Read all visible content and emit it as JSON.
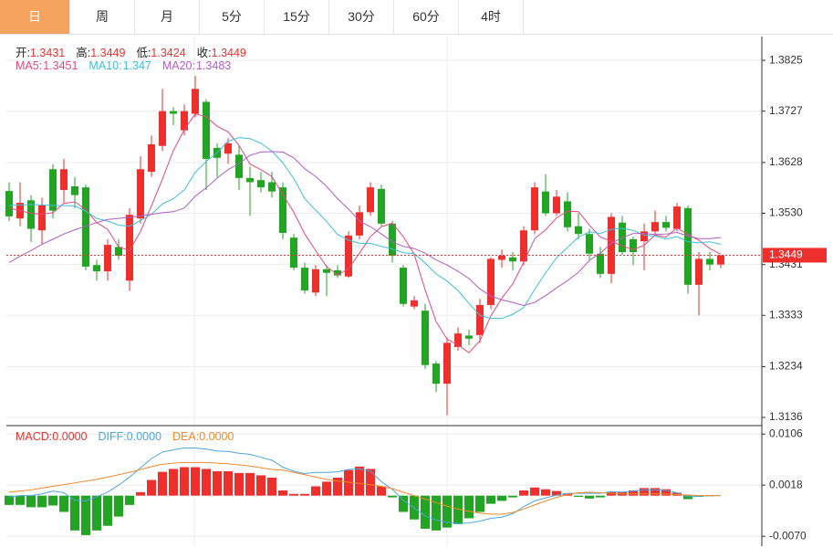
{
  "tabs": [
    "日",
    "周",
    "月",
    "5分",
    "15分",
    "30分",
    "60分",
    "4时"
  ],
  "active_tab": 0,
  "chart_data": [
    {
      "type": "candlestick",
      "up_color": "#ee2f2b",
      "down_color": "#23a524",
      "grid": true,
      "ylim": [
        1.3122,
        1.3871
      ],
      "yticks": [
        1.3136,
        1.3234,
        1.3333,
        1.3431,
        {
          "value": 1.353,
          "label": "1.3530"
        },
        1.3628,
        1.3727,
        1.3825
      ],
      "ohlc_labels": [
        "开:",
        "高:",
        "低:",
        "收:"
      ],
      "open": [
        1.3573,
        1.352,
        1.3555,
        1.3497,
        1.3615,
        1.3575,
        1.3582,
        1.358,
        1.343,
        1.3418,
        1.3465,
        1.34,
        1.352,
        1.361,
        1.366,
        1.3727,
        1.369,
        1.3722,
        1.3745,
        1.3656,
        1.3645,
        1.3643,
        1.3598,
        1.3594,
        1.359,
        1.358,
        1.3483,
        1.3425,
        1.3377,
        1.3422,
        1.342,
        1.3408,
        1.3487,
        1.3532,
        1.3577,
        1.351,
        1.3425,
        1.335,
        1.3342,
        1.324,
        1.3201,
        1.3272,
        1.3294,
        1.3295,
        1.3353,
        1.344,
        1.3445,
        1.3437,
        1.3497,
        1.3572,
        1.353,
        1.3553,
        1.3505,
        1.349,
        1.3452,
        1.3413,
        1.3512,
        1.348,
        1.3476,
        1.3495,
        1.3513,
        1.35,
        1.354,
        1.3392,
        1.3442,
        1.3431
      ],
      "high": [
        1.359,
        1.359,
        1.3565,
        1.356,
        1.3625,
        1.3635,
        1.36,
        1.3585,
        1.344,
        1.348,
        1.348,
        1.354,
        1.364,
        1.368,
        1.377,
        1.3735,
        1.374,
        1.3795,
        1.375,
        1.3665,
        1.3675,
        1.366,
        1.362,
        1.361,
        1.361,
        1.359,
        1.349,
        1.3435,
        1.343,
        1.343,
        1.343,
        1.3495,
        1.3545,
        1.359,
        1.3585,
        1.3515,
        1.343,
        1.337,
        1.3355,
        1.3245,
        1.329,
        1.331,
        1.3305,
        1.3365,
        1.3445,
        1.346,
        1.3455,
        1.3505,
        1.359,
        1.3605,
        1.3575,
        1.357,
        1.353,
        1.35,
        1.3465,
        1.353,
        1.3525,
        1.3485,
        1.351,
        1.3535,
        1.3525,
        1.355,
        1.3545,
        1.3455,
        1.3455,
        1.3449
      ],
      "low": [
        1.3515,
        1.3505,
        1.3475,
        1.347,
        1.352,
        1.355,
        1.354,
        1.342,
        1.34,
        1.34,
        1.344,
        1.338,
        1.351,
        1.36,
        1.365,
        1.37,
        1.368,
        1.3715,
        1.3575,
        1.36,
        1.3625,
        1.3575,
        1.3525,
        1.357,
        1.356,
        1.348,
        1.342,
        1.3375,
        1.337,
        1.337,
        1.3405,
        1.3405,
        1.348,
        1.3525,
        1.3505,
        1.3435,
        1.335,
        1.3345,
        1.323,
        1.3185,
        1.314,
        1.3265,
        1.3275,
        1.328,
        1.3345,
        1.3425,
        1.342,
        1.343,
        1.349,
        1.3525,
        1.3525,
        1.3495,
        1.348,
        1.344,
        1.3405,
        1.3395,
        1.345,
        1.343,
        1.342,
        1.349,
        1.3495,
        1.3495,
        1.3375,
        1.3333,
        1.342,
        1.3424
      ],
      "close": [
        1.3524,
        1.355,
        1.35,
        1.3545,
        1.3535,
        1.3615,
        1.3565,
        1.3427,
        1.3418,
        1.3469,
        1.3448,
        1.3527,
        1.3615,
        1.3663,
        1.3727,
        1.3722,
        1.3727,
        1.377,
        1.3635,
        1.3637,
        1.3665,
        1.3598,
        1.359,
        1.358,
        1.3572,
        1.3492,
        1.3425,
        1.3381,
        1.3422,
        1.3415,
        1.341,
        1.3487,
        1.3532,
        1.358,
        1.351,
        1.3448,
        1.3355,
        1.3362,
        1.3237,
        1.3201,
        1.328,
        1.3298,
        1.3288,
        1.3353,
        1.3442,
        1.3448,
        1.3437,
        1.3497,
        1.358,
        1.353,
        1.3562,
        1.3503,
        1.349,
        1.3452,
        1.3413,
        1.3523,
        1.3455,
        1.3455,
        1.3495,
        1.3513,
        1.3502,
        1.3543,
        1.3392,
        1.3442,
        1.3431,
        1.3449
      ],
      "series": [
        {
          "name": "MA5:",
          "color": "#e4477e",
          "values": [
            1.354,
            1.3535,
            1.353,
            1.3528,
            1.3531,
            1.3549,
            1.3552,
            1.3537,
            1.3512,
            1.3499,
            1.3465,
            1.3458,
            1.3495,
            1.3544,
            1.3596,
            1.3651,
            1.3691,
            1.3722,
            1.3716,
            1.3698,
            1.3687,
            1.3661,
            1.3625,
            1.3614,
            1.3601,
            1.3566,
            1.3532,
            1.349,
            1.3458,
            1.3427,
            1.3411,
            1.3423,
            1.3453,
            1.3485,
            1.3504,
            1.3511,
            1.3485,
            1.3451,
            1.3382,
            1.3321,
            1.3287,
            1.3276,
            1.3261,
            1.3284,
            1.3332,
            1.3366,
            1.3394,
            1.3435,
            1.3481,
            1.3498,
            1.3521,
            1.3534,
            1.3533,
            1.3507,
            1.3484,
            1.3476,
            1.3467,
            1.346,
            1.3468,
            1.3488,
            1.3484,
            1.3502,
            1.3489,
            1.3478,
            1.3462,
            1.3451
          ]
        },
        {
          "name": "MA10:",
          "color": "#3cbfd8",
          "values": [
            1.3545,
            1.3546,
            1.3547,
            1.3546,
            1.3545,
            1.3545,
            1.3544,
            1.3534,
            1.352,
            1.3515,
            1.3507,
            1.3505,
            1.3516,
            1.3528,
            1.3548,
            1.3558,
            1.3575,
            1.3609,
            1.363,
            1.3647,
            1.3669,
            1.3676,
            1.3674,
            1.3665,
            1.365,
            1.3627,
            1.3597,
            1.3558,
            1.3536,
            1.3514,
            1.3489,
            1.3478,
            1.3472,
            1.3472,
            1.3466,
            1.3461,
            1.3454,
            1.3452,
            1.3434,
            1.3413,
            1.3399,
            1.3381,
            1.3356,
            1.3333,
            1.3327,
            1.3327,
            1.3335,
            1.3348,
            1.3383,
            1.3415,
            1.3444,
            1.3464,
            1.3484,
            1.3494,
            1.3491,
            1.3499,
            1.3501,
            1.3497,
            1.3488,
            1.3486,
            1.348,
            1.3485,
            1.3475,
            1.3473,
            1.3475,
            1.347
          ]
        },
        {
          "name": "MA20:",
          "color": "#b15cc6",
          "values": [
            1.3435,
            1.3447,
            1.3458,
            1.347,
            1.348,
            1.349,
            1.3498,
            1.3505,
            1.3512,
            1.3518,
            1.352,
            1.3522,
            1.3525,
            1.3528,
            1.3531,
            1.3533,
            1.354,
            1.3563,
            1.3579,
            1.3598,
            1.3614,
            1.3626,
            1.3642,
            1.3648,
            1.3649,
            1.3648,
            1.3637,
            1.3616,
            1.3601,
            1.3582,
            1.3558,
            1.3538,
            1.3515,
            1.3504,
            1.349,
            1.3475,
            1.3466,
            1.3462,
            1.3453,
            1.344,
            1.343,
            1.3418,
            1.3404,
            1.3384,
            1.337,
            1.3363,
            1.3358,
            1.3352,
            1.3358,
            1.3371,
            1.3386,
            1.34,
            1.3416,
            1.3439,
            1.3453,
            1.3472,
            1.3483,
            1.3491,
            1.3491,
            1.3489,
            1.349,
            1.3493,
            1.3486,
            1.3481,
            1.3481,
            1.3483
          ]
        }
      ]
    },
    {
      "type": "macd",
      "grid": true,
      "ylim": [
        -0.0087,
        0.0119
      ],
      "yticks": [
        {
          "value": -0.007,
          "label": "-0.0070"
        },
        0.0018,
        0.0106
      ],
      "series": [
        {
          "name": "MACD:",
          "legend_label": "0.0000",
          "color": "#ee2f2b",
          "down_color": "#23a524",
          "values": [
            -0.0016,
            -0.0016,
            -0.002,
            -0.002,
            -0.0017,
            -0.0028,
            -0.006,
            -0.0068,
            -0.006,
            -0.0052,
            -0.0036,
            -0.0016,
            0.0006,
            0.0027,
            0.0041,
            0.0046,
            0.0049,
            0.0049,
            0.0046,
            0.0042,
            0.0042,
            0.0039,
            0.0039,
            0.0035,
            0.0031,
            0.0009,
            0.0003,
            0.0003,
            0.0016,
            0.0024,
            0.0031,
            0.0044,
            0.005,
            0.0046,
            0.0016,
            -0.0003,
            -0.0028,
            -0.0041,
            -0.0057,
            -0.006,
            -0.0055,
            -0.0049,
            -0.0039,
            -0.0028,
            -0.0014,
            -0.0009,
            -0.0003,
            0.0009,
            0.0014,
            0.0011,
            0.0008,
            0.0003,
            -0.0002,
            -0.0005,
            -0.0003,
            0.0006,
            0.0006,
            0.0009,
            0.0013,
            0.0013,
            0.0011,
            0.0005,
            -0.0006,
            -0.0002,
            -0.0001,
            0
          ]
        },
        {
          "name": "DIFF:",
          "legend_label": "0.0000",
          "color": "#4ca4e0",
          "values": [
            -0.0002,
            0,
            0,
            0.0003,
            0.0008,
            0.0005,
            -0.0008,
            -0.0009,
            -0.0002,
            0.0006,
            0.0018,
            0.0032,
            0.0048,
            0.0064,
            0.0075,
            0.0079,
            0.0082,
            0.0082,
            0.008,
            0.0077,
            0.0076,
            0.0073,
            0.0071,
            0.0066,
            0.0061,
            0.0049,
            0.0042,
            0.0038,
            0.004,
            0.004,
            0.0041,
            0.0045,
            0.0046,
            0.0042,
            0.0024,
            0.0011,
            -0.0008,
            -0.0021,
            -0.0035,
            -0.0042,
            -0.0046,
            -0.0048,
            -0.0047,
            -0.0044,
            -0.0039,
            -0.0037,
            -0.0031,
            -0.0019,
            -0.0009,
            -0.0004,
            0.0001,
            0.0004,
            0.0004,
            0.0004,
            0.0004,
            0.0007,
            0.0006,
            0.0008,
            0.001,
            0.001,
            0.0009,
            0.0005,
            -0.0002,
            -0.0001,
            0,
            0
          ]
        },
        {
          "name": "DEA:",
          "legend_label": "0.0000",
          "color": "#f0892c",
          "values": [
            0.0006,
            0.0008,
            0.001,
            0.0013,
            0.0016,
            0.0019,
            0.0022,
            0.0025,
            0.0028,
            0.0032,
            0.0036,
            0.004,
            0.0045,
            0.005,
            0.0054,
            0.0056,
            0.0057,
            0.0057,
            0.0057,
            0.0056,
            0.0055,
            0.0053,
            0.0051,
            0.0048,
            0.0045,
            0.0044,
            0.004,
            0.0036,
            0.0032,
            0.0028,
            0.0025,
            0.0023,
            0.0021,
            0.0019,
            0.0016,
            0.0012,
            0.0006,
            0,
            -0.0006,
            -0.0012,
            -0.0018,
            -0.0023,
            -0.0027,
            -0.003,
            -0.0032,
            -0.0032,
            -0.0029,
            -0.0023,
            -0.0016,
            -0.0009,
            -0.0003,
            0.0002,
            0.0005,
            0.0006,
            0.0005,
            0.0004,
            0.0003,
            0.0003,
            0.0003,
            0.0003,
            0.0003,
            0.0002,
            0.0001,
            0,
            0,
            0
          ]
        }
      ]
    }
  ]
}
